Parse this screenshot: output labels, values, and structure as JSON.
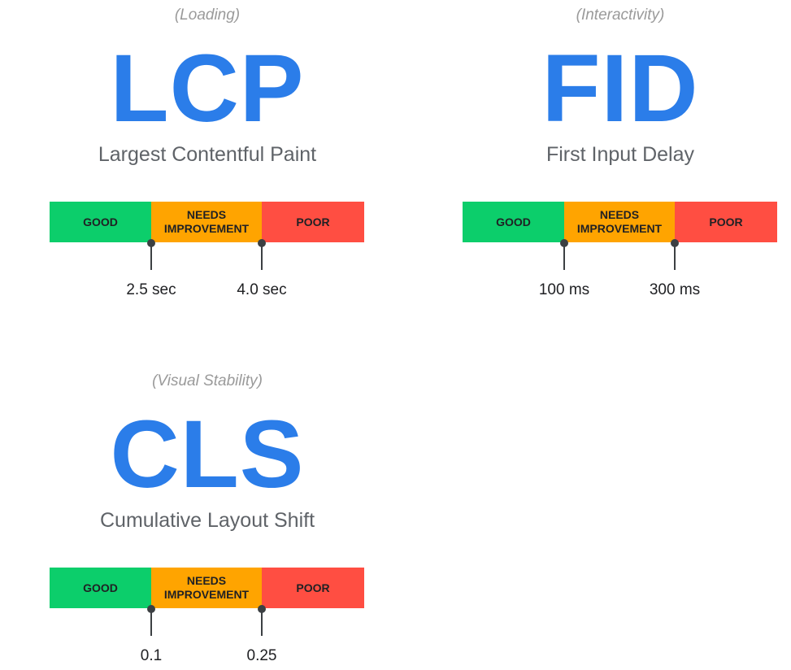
{
  "colors": {
    "good": "#0cce6b",
    "needs_improvement": "#ffa400",
    "poor": "#ff4e42",
    "accent": "#2b7de9"
  },
  "metrics": [
    {
      "category": "(Loading)",
      "abbr": "LCP",
      "name": "Largest Contentful Paint",
      "segments": {
        "good": "GOOD",
        "needs": "NEEDS IMPROVEMENT",
        "poor": "POOR"
      },
      "thresholds": [
        "2.5 sec",
        "4.0 sec"
      ]
    },
    {
      "category": "(Interactivity)",
      "abbr": "FID",
      "name": "First Input Delay",
      "segments": {
        "good": "GOOD",
        "needs": "NEEDS IMPROVEMENT",
        "poor": "POOR"
      },
      "thresholds": [
        "100 ms",
        "300 ms"
      ]
    },
    {
      "category": "(Visual Stability)",
      "abbr": "CLS",
      "name": "Cumulative Layout Shift",
      "segments": {
        "good": "GOOD",
        "needs": "NEEDS IMPROVEMENT",
        "poor": "POOR"
      },
      "thresholds": [
        "0.1",
        "0.25"
      ]
    }
  ]
}
